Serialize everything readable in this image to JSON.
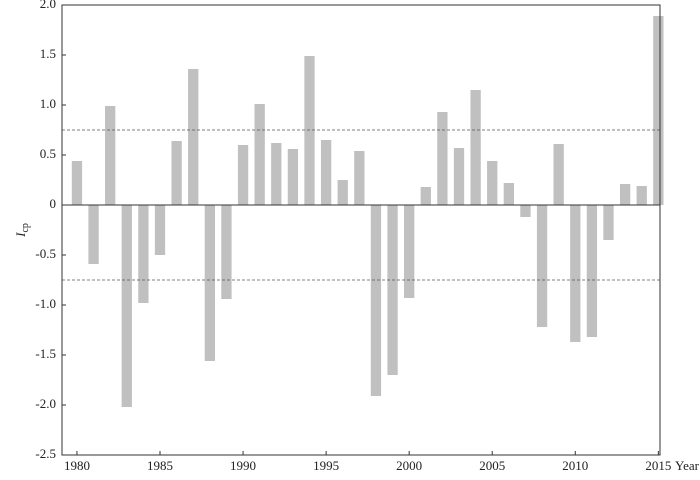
{
  "chart_data": {
    "type": "bar",
    "x_label": "Year",
    "y_label": {
      "main": "I",
      "sub": "cp"
    },
    "x": [
      1980,
      1981,
      1982,
      1983,
      1984,
      1985,
      1986,
      1987,
      1988,
      1989,
      1990,
      1991,
      1992,
      1993,
      1994,
      1995,
      1996,
      1997,
      1998,
      1999,
      2000,
      2001,
      2002,
      2003,
      2004,
      2005,
      2006,
      2007,
      2008,
      2009,
      2010,
      2011,
      2012,
      2013,
      2014,
      2015
    ],
    "values": [
      0.44,
      -0.59,
      0.99,
      -2.02,
      -0.98,
      -0.5,
      0.64,
      1.36,
      -1.56,
      -0.94,
      0.6,
      1.01,
      0.62,
      0.56,
      1.49,
      0.65,
      0.25,
      0.54,
      -1.91,
      -1.7,
      -0.93,
      0.18,
      0.93,
      0.57,
      1.15,
      0.44,
      0.22,
      -0.12,
      -1.22,
      0.61,
      -1.37,
      -1.32,
      -0.35,
      0.21,
      0.19,
      1.89
    ],
    "color": "#c0c0c0",
    "xlim": [
      1979.1,
      2015.1
    ],
    "xticks": [
      1980,
      1985,
      1990,
      1995,
      2000,
      2005,
      2010,
      2015
    ],
    "ylim": [
      -2.5,
      2.0
    ],
    "yticks": [
      {
        "value": -2.5,
        "label": "-2.5"
      },
      {
        "value": -2,
        "label": "-2.0"
      },
      -1.5,
      {
        "value": -1,
        "label": "-1.0"
      },
      -0.5,
      0,
      0.5,
      {
        "value": 1,
        "label": "1.0"
      },
      1.5,
      {
        "value": 2,
        "label": "2.0"
      }
    ],
    "reference_lines": [
      0.75,
      -0.75
    ],
    "grid": false
  }
}
